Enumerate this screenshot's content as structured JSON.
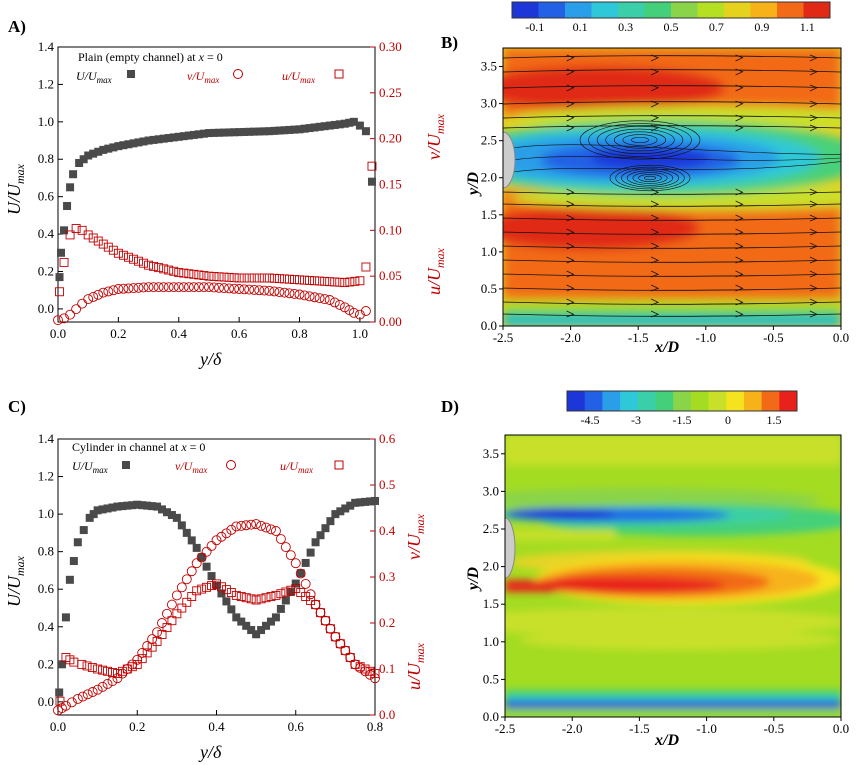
{
  "panels": {
    "A": {
      "label": "A)",
      "legend": {
        "title_prefix": "Plain (empty channel) at",
        "title_x": "x",
        "title_suffix": "= 0",
        "s1": "U/U",
        "s2": "v/U",
        "s3": "u/U",
        "sub": "max"
      },
      "left_ticks": [
        "1.4",
        "1.2",
        "1.0",
        "0.8",
        "0.6",
        "0.4",
        "0.2",
        "0.0"
      ],
      "right_ticks": [
        "0.30",
        "0.25",
        "0.20",
        "0.15",
        "0.10",
        "0.05",
        "0.00"
      ],
      "x_ticks": [
        "0.0",
        "0.2",
        "0.4",
        "0.6",
        "0.8",
        "1.0"
      ],
      "xlabel": "y/δ",
      "ylabel_left": "U/U_max",
      "ylabel_right_top": "v/U_max",
      "ylabel_right_bottom": "u/U_max"
    },
    "B": {
      "label": "B)",
      "colorbar_ticks": [
        "-0.1",
        "0.1",
        "0.3",
        "0.5",
        "0.7",
        "0.9",
        "1.1"
      ],
      "y_ticks": [
        "3.5",
        "3.0",
        "2.5",
        "2.0",
        "1.5",
        "1.0",
        "0.5",
        "0.0"
      ],
      "x_ticks": [
        "-2.5",
        "-2.0",
        "-1.5",
        "-1.0",
        "-0.5",
        "0.0"
      ],
      "xlabel": "x/D",
      "ylabel": "y/D"
    },
    "C": {
      "label": "C)",
      "legend": {
        "title_prefix": "Cylinder in channel at",
        "title_x": "x",
        "title_suffix": "= 0",
        "s1": "U/U",
        "s2": "v/U",
        "s3": "u/U",
        "sub": "max"
      },
      "left_ticks": [
        "1.4",
        "1.2",
        "1.0",
        "0.8",
        "0.6",
        "0.4",
        "0.2",
        "0.0"
      ],
      "right_ticks": [
        "0.6",
        "0.5",
        "0.4",
        "0.3",
        "0.2",
        "0.1",
        "0.0"
      ],
      "x_ticks": [
        "0.0",
        "0.2",
        "0.4",
        "0.6",
        "0.8"
      ],
      "xlabel": "y/δ",
      "ylabel_left": "U/U_max",
      "ylabel_right_top": "v/U_max",
      "ylabel_right_bottom": "u/U_max"
    },
    "D": {
      "label": "D)",
      "colorbar_ticks": [
        "-4.5",
        "-3",
        "-1.5",
        "0",
        "1.5"
      ],
      "y_ticks": [
        "3.5",
        "3.0",
        "2.5",
        "2.0",
        "1.5",
        "1.0",
        "0.5",
        "0.0"
      ],
      "x_ticks": [
        "-2.5",
        "-2.0",
        "-1.5",
        "-1.0",
        "-0.5",
        "0.0"
      ],
      "xlabel": "x/D",
      "ylabel": "y/D"
    }
  },
  "colors": {
    "dark_series": "#4a4a4a",
    "red_series": "#c00000",
    "axis": "#000000"
  },
  "chart_data": [
    {
      "panel": "A",
      "type": "scatter",
      "title": "Plain (empty channel) at x = 0",
      "xlabel": "y/δ",
      "ylabel": "U/U_max",
      "ylabel_right": "v/U_max, u/U_max",
      "xlim": [
        0,
        1.05
      ],
      "ylim": [
        -0.07,
        1.4
      ],
      "ylim_right": [
        0,
        0.3
      ],
      "series": [
        {
          "name": "U/U_max",
          "axis": "left",
          "marker": "filled-square",
          "x": [
            0.005,
            0.01,
            0.02,
            0.03,
            0.04,
            0.05,
            0.07,
            0.1,
            0.15,
            0.2,
            0.3,
            0.4,
            0.5,
            0.6,
            0.7,
            0.8,
            0.9,
            0.95,
            0.98,
            1.0,
            1.02,
            1.04
          ],
          "y": [
            0.17,
            0.3,
            0.42,
            0.55,
            0.65,
            0.72,
            0.78,
            0.82,
            0.85,
            0.87,
            0.9,
            0.92,
            0.94,
            0.945,
            0.95,
            0.96,
            0.98,
            0.99,
            1.0,
            0.98,
            0.95,
            0.68
          ]
        },
        {
          "name": "v/U_max",
          "axis": "right",
          "marker": "open-circle",
          "x": [
            0.0,
            0.02,
            0.04,
            0.06,
            0.08,
            0.1,
            0.15,
            0.2,
            0.3,
            0.4,
            0.5,
            0.6,
            0.7,
            0.8,
            0.9,
            0.95,
            0.98,
            1.0,
            1.02
          ],
          "y": [
            0.002,
            0.004,
            0.008,
            0.014,
            0.02,
            0.025,
            0.032,
            0.036,
            0.038,
            0.038,
            0.038,
            0.036,
            0.034,
            0.03,
            0.024,
            0.016,
            0.01,
            0.008,
            0.012
          ]
        },
        {
          "name": "u/U_max",
          "axis": "right",
          "marker": "open-square",
          "x": [
            0.005,
            0.02,
            0.04,
            0.06,
            0.08,
            0.1,
            0.15,
            0.2,
            0.3,
            0.4,
            0.5,
            0.6,
            0.7,
            0.8,
            0.9,
            0.95,
            1.0,
            1.02,
            1.04
          ],
          "y": [
            0.033,
            0.065,
            0.095,
            0.102,
            0.1,
            0.095,
            0.085,
            0.075,
            0.062,
            0.054,
            0.05,
            0.048,
            0.048,
            0.046,
            0.044,
            0.043,
            0.045,
            0.06,
            0.17
          ]
        }
      ]
    },
    {
      "panel": "B",
      "type": "heatmap",
      "xlabel": "x/D",
      "ylabel": "y/D",
      "xlim": [
        -2.5,
        0.0
      ],
      "ylim": [
        0.0,
        3.75
      ],
      "colorbar_range": [
        -0.2,
        1.2
      ],
      "features": [
        "high-velocity band near y/D≈3.1",
        "recirculation (negative) near y/D≈2.2",
        "high-velocity band near y/D≈1.3"
      ]
    },
    {
      "panel": "C",
      "type": "scatter",
      "title": "Cylinder in channel at x = 0",
      "xlabel": "y/δ",
      "ylabel": "U/U_max",
      "ylabel_right": "v/U_max, u/U_max",
      "xlim": [
        0,
        0.8
      ],
      "ylim": [
        -0.07,
        1.4
      ],
      "ylim_right": [
        0,
        0.6
      ],
      "series": [
        {
          "name": "U/U_max",
          "axis": "left",
          "marker": "filled-square",
          "x": [
            0.003,
            0.01,
            0.02,
            0.03,
            0.05,
            0.08,
            0.1,
            0.15,
            0.2,
            0.25,
            0.3,
            0.35,
            0.4,
            0.45,
            0.5,
            0.55,
            0.6,
            0.65,
            0.7,
            0.75,
            0.8
          ],
          "y": [
            0.05,
            0.2,
            0.45,
            0.65,
            0.85,
            0.98,
            1.02,
            1.04,
            1.05,
            1.04,
            0.98,
            0.82,
            0.62,
            0.45,
            0.36,
            0.45,
            0.63,
            0.85,
            1.0,
            1.06,
            1.07
          ]
        },
        {
          "name": "v/U_max",
          "axis": "right",
          "marker": "open-circle",
          "x": [
            0.0,
            0.02,
            0.05,
            0.1,
            0.15,
            0.2,
            0.25,
            0.3,
            0.35,
            0.4,
            0.45,
            0.5,
            0.55,
            0.6,
            0.65,
            0.7,
            0.75,
            0.8
          ],
          "y": [
            0.01,
            0.02,
            0.035,
            0.055,
            0.08,
            0.12,
            0.18,
            0.26,
            0.33,
            0.38,
            0.41,
            0.415,
            0.4,
            0.33,
            0.24,
            0.17,
            0.11,
            0.08
          ]
        },
        {
          "name": "u/U_max",
          "axis": "right",
          "marker": "open-square",
          "x": [
            0.005,
            0.02,
            0.04,
            0.06,
            0.1,
            0.15,
            0.2,
            0.25,
            0.3,
            0.35,
            0.4,
            0.45,
            0.5,
            0.55,
            0.6,
            0.65,
            0.7,
            0.75,
            0.8
          ],
          "y": [
            0.03,
            0.125,
            0.115,
            0.11,
            0.1,
            0.09,
            0.11,
            0.16,
            0.22,
            0.27,
            0.285,
            0.26,
            0.25,
            0.26,
            0.275,
            0.24,
            0.17,
            0.11,
            0.09
          ]
        }
      ]
    },
    {
      "panel": "D",
      "type": "heatmap",
      "xlabel": "x/D",
      "ylabel": "y/D",
      "xlim": [
        -2.5,
        0.0
      ],
      "ylim": [
        0.0,
        3.75
      ],
      "colorbar_range": [
        -5.25,
        2.25
      ],
      "features": [
        "strong negative shear layer near y/D≈2.7",
        "strong positive shear layer near y/D≈1.65",
        "negative layer at wall y/D≈0.05"
      ]
    }
  ]
}
